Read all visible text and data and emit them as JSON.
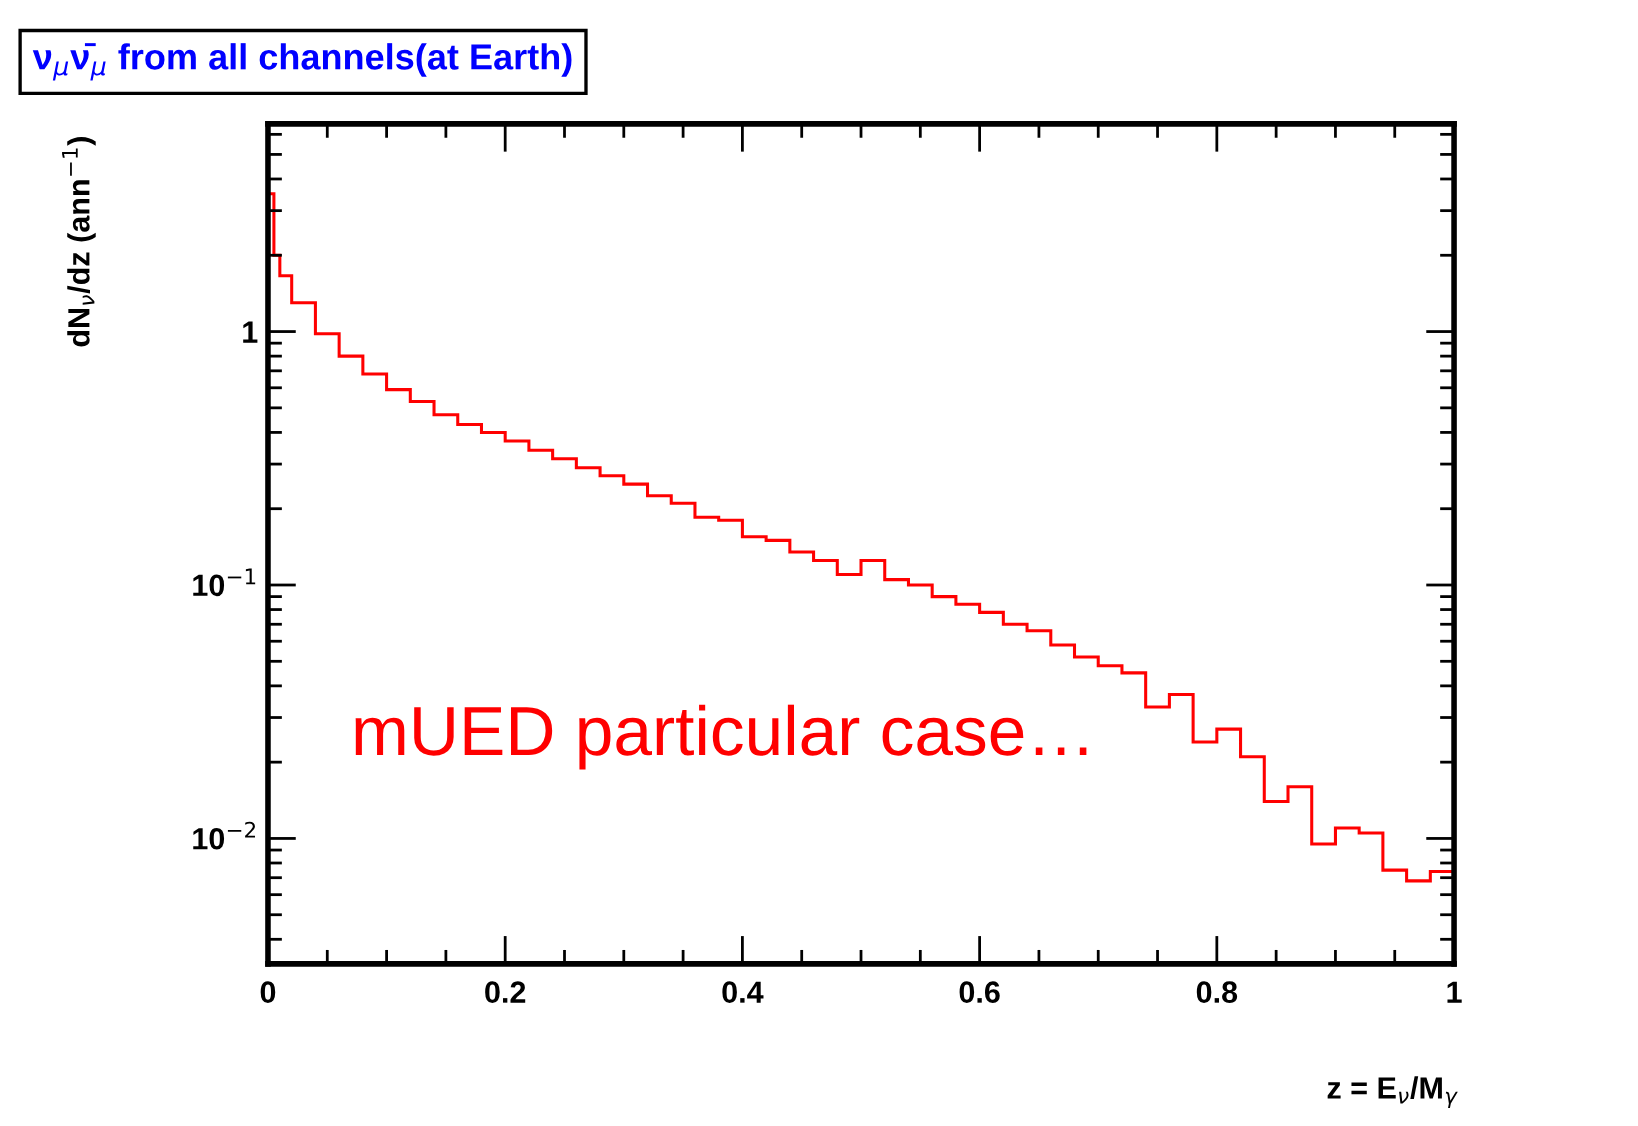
{
  "chart_data": {
    "type": "histogram",
    "title": "ν$_{μ}$ν̄$_{μ}$ from all channels(at Earth)",
    "xlabel": "z = E$_{ν}$/M$_{γ}$",
    "ylabel": "dN$_{ν}$/dz (ann$^{−1}$)",
    "annotations": [
      "mUED particular case…"
    ],
    "bins": [
      0,
      0.005,
      0.01,
      0.02,
      0.04,
      0.06,
      0.08,
      0.1,
      0.12,
      0.14,
      0.16,
      0.18,
      0.2,
      0.22,
      0.24,
      0.26,
      0.28,
      0.3,
      0.32,
      0.34,
      0.36,
      0.38,
      0.4,
      0.42,
      0.44,
      0.46,
      0.48,
      0.5,
      0.52,
      0.54,
      0.56,
      0.58,
      0.6,
      0.62,
      0.64,
      0.66,
      0.68,
      0.7,
      0.72,
      0.74,
      0.76,
      0.78,
      0.8,
      0.82,
      0.84,
      0.86,
      0.88,
      0.9,
      0.92,
      0.94,
      0.96,
      0.98,
      1
    ],
    "values": [
      3.5,
      2.0,
      1.66,
      1.3,
      0.98,
      0.8,
      0.68,
      0.59,
      0.53,
      0.47,
      0.43,
      0.4,
      0.37,
      0.34,
      0.315,
      0.29,
      0.27,
      0.25,
      0.225,
      0.21,
      0.185,
      0.18,
      0.155,
      0.15,
      0.135,
      0.125,
      0.11,
      0.125,
      0.105,
      0.1,
      0.09,
      0.084,
      0.078,
      0.07,
      0.066,
      0.058,
      0.052,
      0.048,
      0.045,
      0.033,
      0.037,
      0.024,
      0.027,
      0.021,
      0.014,
      0.016,
      0.0095,
      0.011,
      0.0105,
      0.0075,
      0.0068,
      0.0074
    ],
    "color": "#ff0000",
    "log": "y",
    "xlim": [
      0,
      1
    ],
    "ylim": [
      0.0032,
      6.6
    ],
    "xticks": [
      0,
      0.2,
      0.4,
      0.6,
      0.8,
      1
    ],
    "yticks": [
      {
        "value": 0.01,
        "label": "10$^{−2}$"
      },
      {
        "value": 0.1,
        "label": "10$^{−1}$"
      },
      1
    ],
    "grid": false,
    "legend": false
  }
}
